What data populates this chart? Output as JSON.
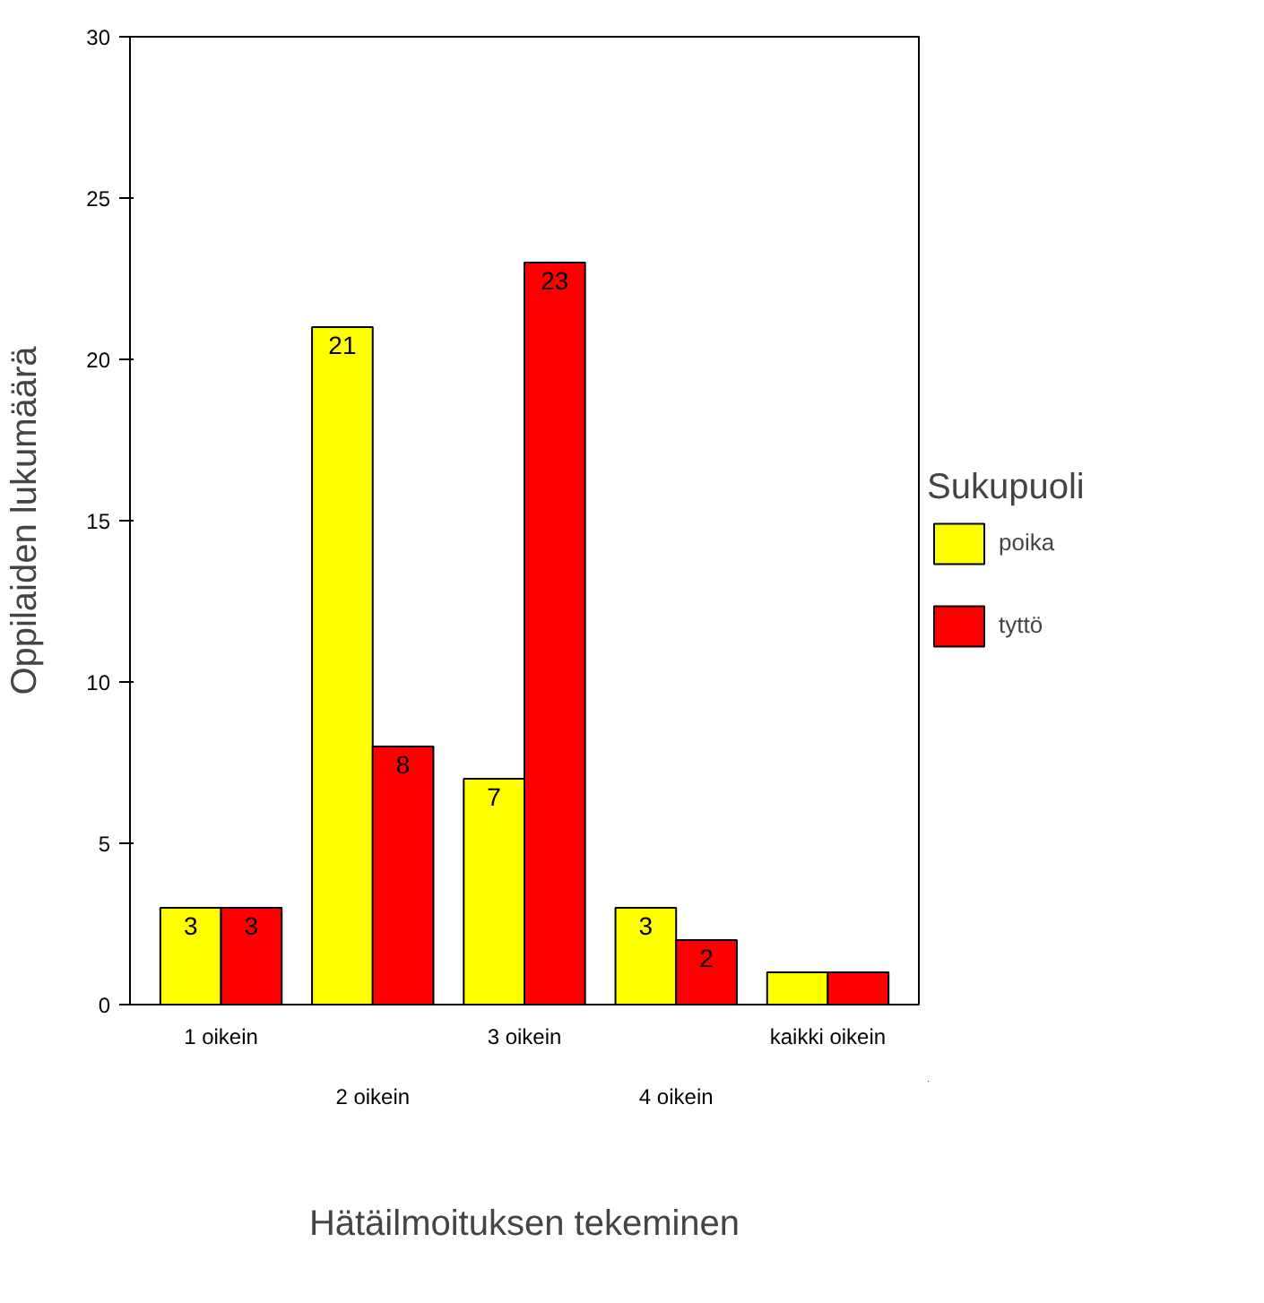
{
  "chart_data": {
    "type": "bar",
    "xlabel": "Hätäilmoituksen tekeminen",
    "ylabel": "Oppilaiden lukumäärä",
    "legend_title": "Sukupuoli",
    "categories": [
      "1 oikein",
      "2 oikein",
      "3 oikein",
      "4 oikein",
      "kaikki oikein"
    ],
    "series": [
      {
        "name": "poika",
        "color": "#ffff00",
        "values": [
          3,
          21,
          7,
          3,
          1
        ],
        "value_labels": [
          "3",
          "21",
          "7",
          "3",
          null
        ]
      },
      {
        "name": "tyttö",
        "color": "#ff0000",
        "values": [
          3,
          8,
          23,
          2,
          1
        ],
        "value_labels": [
          "3",
          "8",
          "23",
          "2",
          null
        ]
      }
    ],
    "ylim": [
      0,
      30
    ],
    "yticks": [
      0,
      5,
      10,
      15,
      20,
      25,
      30
    ],
    "grid": false,
    "legend": "right"
  }
}
